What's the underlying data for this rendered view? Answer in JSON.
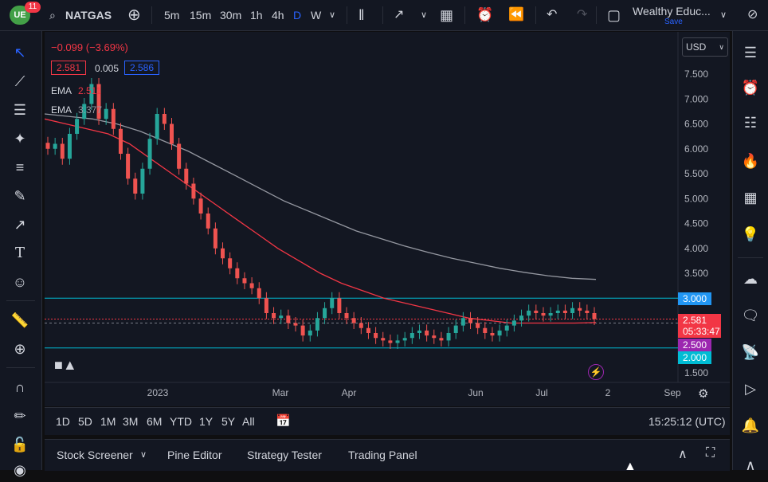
{
  "header": {
    "logo_badge": "11",
    "symbol": "NATGAS",
    "timeframes": [
      "5m",
      "15m",
      "30m",
      "1h",
      "4h",
      "D",
      "W"
    ],
    "active_timeframe": "D",
    "layout_name": "Wealthy Educ...",
    "save_label": "Save"
  },
  "legend": {
    "change": "−0.099 (−3.69%)",
    "bid": "2.581",
    "spread": "0.005",
    "ask": "2.586",
    "ema1_label": "EMA",
    "ema1_value": "2.511",
    "ema2_label": "EMA",
    "ema2_value": "3.377"
  },
  "currency": "USD",
  "price_tags": {
    "level_3000": "3.000",
    "current": "2.581",
    "countdown": "05:33:47",
    "ema_tag": "2.500",
    "level_2000": "2.000"
  },
  "timerange": {
    "buttons": [
      "1D",
      "5D",
      "1M",
      "3M",
      "6M",
      "YTD",
      "1Y",
      "5Y",
      "All"
    ],
    "clock": "15:25:12 (UTC)"
  },
  "panels": {
    "stock_screener": "Stock Screener",
    "pine_editor": "Pine Editor",
    "strategy_tester": "Strategy Tester",
    "trading_panel": "Trading Panel"
  },
  "colors": {
    "up": "#26a69a",
    "down": "#ef5350",
    "ema_fast": "#f23645",
    "ema_slow": "#9598a1",
    "accent": "#2962ff",
    "level_line": "#00bcd4"
  },
  "chart_data": {
    "type": "candlestick",
    "y_ticks": [
      7.5,
      7.0,
      6.5,
      6.0,
      5.5,
      5.0,
      4.5,
      4.0,
      3.5,
      3.0,
      2.5,
      2.0,
      1.5
    ],
    "y_tick_labels": [
      "7.500",
      "7.000",
      "6.500",
      "6.000",
      "5.500",
      "5.000",
      "4.500",
      "4.000",
      "3.500",
      "3.000",
      "2.500",
      "2.000",
      "1.500"
    ],
    "x_labels": [
      "2023",
      "Mar",
      "Apr",
      "Jun",
      "Jul",
      "2",
      "Sep"
    ],
    "ylim": [
      1.25,
      8.0
    ],
    "horizontal_levels": [
      3.0,
      2.0
    ],
    "current_price": 2.581,
    "closes": [
      6.0,
      6.1,
      5.8,
      6.3,
      6.6,
      6.9,
      7.3,
      6.6,
      6.8,
      6.4,
      5.9,
      5.4,
      5.1,
      5.6,
      6.2,
      6.7,
      6.5,
      6.1,
      5.6,
      5.3,
      5.0,
      4.7,
      4.4,
      4.0,
      3.8,
      3.6,
      3.4,
      3.3,
      3.2,
      3.0,
      2.7,
      2.6,
      2.65,
      2.5,
      2.45,
      2.25,
      2.35,
      2.6,
      2.8,
      3.0,
      2.7,
      2.6,
      2.5,
      2.4,
      2.3,
      2.2,
      2.15,
      2.1,
      2.15,
      2.2,
      2.3,
      2.35,
      2.25,
      2.2,
      2.15,
      2.3,
      2.45,
      2.6,
      2.5,
      2.4,
      2.3,
      2.25,
      2.35,
      2.45,
      2.55,
      2.65,
      2.75,
      2.7,
      2.65,
      2.7,
      2.75,
      2.7,
      2.8,
      2.75,
      2.7,
      2.58
    ],
    "ema_fast": [
      6.6,
      6.5,
      6.4,
      6.3,
      6.1,
      5.8,
      5.5,
      5.2,
      4.9,
      4.6,
      4.3,
      4.0,
      3.75,
      3.5,
      3.3,
      3.15,
      3.0,
      2.9,
      2.8,
      2.7,
      2.6,
      2.55,
      2.5,
      2.5,
      2.5,
      2.5,
      2.51
    ],
    "ema_slow": [
      6.7,
      6.65,
      6.6,
      6.5,
      6.35,
      6.15,
      5.95,
      5.7,
      5.45,
      5.2,
      4.95,
      4.75,
      4.55,
      4.35,
      4.2,
      4.05,
      3.92,
      3.8,
      3.7,
      3.6,
      3.52,
      3.45,
      3.4,
      3.377
    ]
  }
}
